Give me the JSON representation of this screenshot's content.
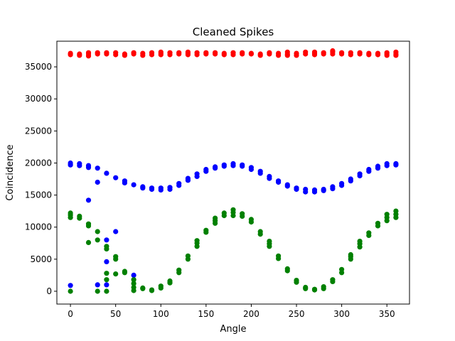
{
  "chart_data": {
    "type": "scatter",
    "title": "Cleaned Spikes",
    "xlabel": "Angle",
    "ylabel": "Coincidence",
    "xlim": [
      -15,
      375
    ],
    "ylim": [
      -2000,
      39000
    ],
    "xticks": [
      0,
      50,
      100,
      150,
      200,
      250,
      300,
      350
    ],
    "yticks": [
      0,
      5000,
      10000,
      15000,
      20000,
      25000,
      30000,
      35000
    ],
    "grid": false,
    "legend": "none",
    "series": [
      {
        "color": "#ff0000",
        "points": [
          [
            0,
            36900
          ],
          [
            0,
            37100
          ],
          [
            10,
            36800
          ],
          [
            10,
            37000
          ],
          [
            20,
            36700
          ],
          [
            20,
            37000
          ],
          [
            20,
            37200
          ],
          [
            30,
            37000
          ],
          [
            30,
            37200
          ],
          [
            40,
            37000
          ],
          [
            40,
            37200
          ],
          [
            50,
            36900
          ],
          [
            50,
            37200
          ],
          [
            60,
            36800
          ],
          [
            60,
            37000
          ],
          [
            70,
            37000
          ],
          [
            70,
            37200
          ],
          [
            80,
            36800
          ],
          [
            80,
            37100
          ],
          [
            90,
            36900
          ],
          [
            90,
            37200
          ],
          [
            100,
            36900
          ],
          [
            100,
            37100
          ],
          [
            100,
            37300
          ],
          [
            110,
            36900
          ],
          [
            110,
            37200
          ],
          [
            120,
            37000
          ],
          [
            120,
            37200
          ],
          [
            130,
            36900
          ],
          [
            130,
            37100
          ],
          [
            130,
            37300
          ],
          [
            140,
            36900
          ],
          [
            140,
            37200
          ],
          [
            150,
            37000
          ],
          [
            150,
            37200
          ],
          [
            160,
            37000
          ],
          [
            160,
            37200
          ],
          [
            170,
            36900
          ],
          [
            170,
            37100
          ],
          [
            180,
            36900
          ],
          [
            180,
            37200
          ],
          [
            190,
            37000
          ],
          [
            190,
            37200
          ],
          [
            200,
            37000
          ],
          [
            200,
            37100
          ],
          [
            210,
            36800
          ],
          [
            210,
            37000
          ],
          [
            220,
            37000
          ],
          [
            220,
            37200
          ],
          [
            230,
            36800
          ],
          [
            230,
            37100
          ],
          [
            240,
            36800
          ],
          [
            240,
            37000
          ],
          [
            240,
            37300
          ],
          [
            250,
            36800
          ],
          [
            250,
            37100
          ],
          [
            260,
            37000
          ],
          [
            260,
            37300
          ],
          [
            270,
            36900
          ],
          [
            270,
            37100
          ],
          [
            270,
            37300
          ],
          [
            280,
            37000
          ],
          [
            280,
            37200
          ],
          [
            290,
            37000
          ],
          [
            290,
            37300
          ],
          [
            290,
            37500
          ],
          [
            300,
            37000
          ],
          [
            300,
            37200
          ],
          [
            310,
            36900
          ],
          [
            310,
            37200
          ],
          [
            320,
            37000
          ],
          [
            320,
            37200
          ],
          [
            330,
            36900
          ],
          [
            330,
            37100
          ],
          [
            340,
            36900
          ],
          [
            340,
            37100
          ],
          [
            350,
            36800
          ],
          [
            350,
            37000
          ],
          [
            350,
            37200
          ],
          [
            360,
            36800
          ],
          [
            360,
            37000
          ],
          [
            360,
            37300
          ]
        ]
      },
      {
        "color": "#0000ff",
        "points": [
          [
            0,
            19700
          ],
          [
            0,
            20000
          ],
          [
            0,
            900
          ],
          [
            10,
            19600
          ],
          [
            10,
            19900
          ],
          [
            20,
            19300
          ],
          [
            20,
            19600
          ],
          [
            20,
            14200
          ],
          [
            30,
            19200
          ],
          [
            30,
            17000
          ],
          [
            30,
            1000
          ],
          [
            40,
            18400
          ],
          [
            40,
            8000
          ],
          [
            40,
            4600
          ],
          [
            40,
            1000
          ],
          [
            50,
            17700
          ],
          [
            50,
            9300
          ],
          [
            60,
            17200
          ],
          [
            60,
            16900
          ],
          [
            70,
            16600
          ],
          [
            70,
            2500
          ],
          [
            80,
            16100
          ],
          [
            80,
            16300
          ],
          [
            90,
            15900
          ],
          [
            90,
            16100
          ],
          [
            100,
            15800
          ],
          [
            100,
            16100
          ],
          [
            110,
            15900
          ],
          [
            110,
            16200
          ],
          [
            120,
            16500
          ],
          [
            120,
            16800
          ],
          [
            130,
            17300
          ],
          [
            130,
            17600
          ],
          [
            140,
            17900
          ],
          [
            140,
            18300
          ],
          [
            150,
            18700
          ],
          [
            150,
            19000
          ],
          [
            160,
            19200
          ],
          [
            160,
            19400
          ],
          [
            170,
            19500
          ],
          [
            170,
            19700
          ],
          [
            180,
            19600
          ],
          [
            180,
            19900
          ],
          [
            190,
            19500
          ],
          [
            190,
            19700
          ],
          [
            200,
            19000
          ],
          [
            200,
            19300
          ],
          [
            210,
            18400
          ],
          [
            210,
            18700
          ],
          [
            220,
            17600
          ],
          [
            220,
            17900
          ],
          [
            230,
            17000
          ],
          [
            230,
            17200
          ],
          [
            240,
            16400
          ],
          [
            240,
            16600
          ],
          [
            250,
            15900
          ],
          [
            250,
            16100
          ],
          [
            260,
            15500
          ],
          [
            260,
            15900
          ],
          [
            270,
            15500
          ],
          [
            270,
            15800
          ],
          [
            280,
            15700
          ],
          [
            280,
            15900
          ],
          [
            290,
            16000
          ],
          [
            290,
            16300
          ],
          [
            300,
            16500
          ],
          [
            300,
            16800
          ],
          [
            310,
            17200
          ],
          [
            310,
            17500
          ],
          [
            320,
            18000
          ],
          [
            320,
            18300
          ],
          [
            330,
            18700
          ],
          [
            330,
            19000
          ],
          [
            340,
            19200
          ],
          [
            340,
            19500
          ],
          [
            350,
            19600
          ],
          [
            350,
            19900
          ],
          [
            360,
            19700
          ],
          [
            360,
            19900
          ]
        ]
      },
      {
        "color": "#008000",
        "points": [
          [
            0,
            11500
          ],
          [
            0,
            11900
          ],
          [
            0,
            12200
          ],
          [
            0,
            0
          ],
          [
            10,
            11400
          ],
          [
            10,
            11700
          ],
          [
            20,
            10200
          ],
          [
            20,
            10500
          ],
          [
            20,
            7600
          ],
          [
            30,
            9300
          ],
          [
            30,
            8000
          ],
          [
            30,
            0
          ],
          [
            40,
            7000
          ],
          [
            40,
            6600
          ],
          [
            40,
            2800
          ],
          [
            40,
            1800
          ],
          [
            40,
            0
          ],
          [
            50,
            5400
          ],
          [
            50,
            5000
          ],
          [
            50,
            2700
          ],
          [
            60,
            3100
          ],
          [
            60,
            2900
          ],
          [
            70,
            1800
          ],
          [
            70,
            1200
          ],
          [
            70,
            600
          ],
          [
            70,
            100
          ],
          [
            80,
            500
          ],
          [
            80,
            400
          ],
          [
            90,
            200
          ],
          [
            90,
            100
          ],
          [
            100,
            500
          ],
          [
            100,
            800
          ],
          [
            110,
            1300
          ],
          [
            110,
            1600
          ],
          [
            120,
            2900
          ],
          [
            120,
            3300
          ],
          [
            130,
            5000
          ],
          [
            130,
            5500
          ],
          [
            140,
            7000
          ],
          [
            140,
            7500
          ],
          [
            140,
            7900
          ],
          [
            150,
            9200
          ],
          [
            150,
            9500
          ],
          [
            160,
            10600
          ],
          [
            160,
            11000
          ],
          [
            160,
            11400
          ],
          [
            170,
            11800
          ],
          [
            170,
            12200
          ],
          [
            180,
            11800
          ],
          [
            180,
            12300
          ],
          [
            180,
            12700
          ],
          [
            190,
            11700
          ],
          [
            190,
            12100
          ],
          [
            200,
            10800
          ],
          [
            200,
            11200
          ],
          [
            210,
            8900
          ],
          [
            210,
            9300
          ],
          [
            220,
            7000
          ],
          [
            220,
            7400
          ],
          [
            220,
            7800
          ],
          [
            230,
            5100
          ],
          [
            230,
            5500
          ],
          [
            240,
            3200
          ],
          [
            240,
            3500
          ],
          [
            250,
            1400
          ],
          [
            250,
            1700
          ],
          [
            260,
            400
          ],
          [
            260,
            600
          ],
          [
            270,
            200
          ],
          [
            270,
            300
          ],
          [
            280,
            400
          ],
          [
            280,
            700
          ],
          [
            290,
            1500
          ],
          [
            290,
            1800
          ],
          [
            300,
            2900
          ],
          [
            300,
            3400
          ],
          [
            310,
            5000
          ],
          [
            310,
            5400
          ],
          [
            310,
            5700
          ],
          [
            320,
            6900
          ],
          [
            320,
            7400
          ],
          [
            320,
            7800
          ],
          [
            330,
            8700
          ],
          [
            330,
            9100
          ],
          [
            340,
            10200
          ],
          [
            340,
            10600
          ],
          [
            350,
            11000
          ],
          [
            350,
            11500
          ],
          [
            350,
            12000
          ],
          [
            360,
            11500
          ],
          [
            360,
            12000
          ],
          [
            360,
            12500
          ]
        ]
      }
    ]
  }
}
